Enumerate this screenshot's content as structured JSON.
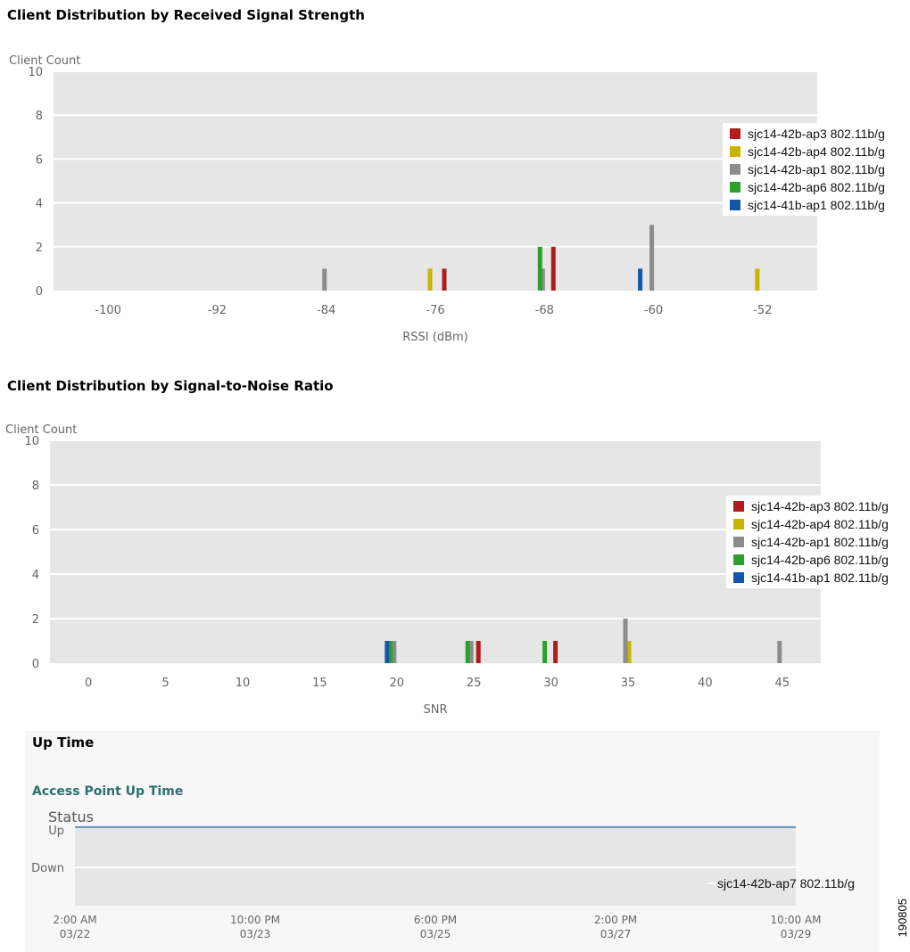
{
  "sections": {
    "rssi_title": "Client Distribution by Received Signal Strength",
    "snr_title": "Client Distribution by Signal-to-Noise Ratio",
    "uptime_title": "Up Time",
    "uptime_subtitle": "Access Point Up Time"
  },
  "figure_id": "190805",
  "colors": {
    "sjc14-42b-ap3": "#b01c1c",
    "sjc14-42b-ap4": "#c8b400",
    "sjc14-42b-ap1": "#8c8c8c",
    "sjc14-42b-ap6": "#2ca02c",
    "sjc14-41b-ap1": "#1457a6",
    "plot_bg": "#e6e6e6",
    "uptime_line": "#6a9ac4"
  },
  "chart_data": [
    {
      "type": "bar",
      "title": "Client Distribution by Received Signal Strength",
      "xlabel": "RSSI (dBm)",
      "ylabel": "Client Count",
      "ylim": [
        0,
        10
      ],
      "yticks": [
        "0",
        "2",
        "4",
        "6",
        "8",
        "10"
      ],
      "categories": [
        "-100",
        "-92",
        "-84",
        "-76",
        "-68",
        "-60",
        "-52"
      ],
      "grid": true,
      "legend_position": "right",
      "series": [
        {
          "name": "sjc14-42b-ap3 802.11b/g",
          "values": [
            0,
            0,
            0,
            1,
            2,
            0,
            0
          ]
        },
        {
          "name": "sjc14-42b-ap4 802.11b/g",
          "values": [
            0,
            0,
            0,
            1,
            0,
            0,
            1
          ]
        },
        {
          "name": "sjc14-42b-ap1 802.11b/g",
          "values": [
            0,
            0,
            1,
            0,
            1,
            3,
            0
          ]
        },
        {
          "name": "sjc14-42b-ap6 802.11b/g",
          "values": [
            0,
            0,
            0,
            0,
            2,
            0,
            0
          ]
        },
        {
          "name": "sjc14-41b-ap1 802.11b/g",
          "values": [
            0,
            0,
            0,
            0,
            0,
            1,
            0
          ]
        }
      ]
    },
    {
      "type": "bar",
      "title": "Client Distribution by Signal-to-Noise Ratio",
      "xlabel": "SNR",
      "ylabel": "Client Count",
      "ylim": [
        0,
        10
      ],
      "yticks": [
        "0",
        "2",
        "4",
        "6",
        "8",
        "10"
      ],
      "categories": [
        "0",
        "5",
        "10",
        "15",
        "20",
        "25",
        "30",
        "35",
        "40",
        "45"
      ],
      "grid": true,
      "legend_position": "right",
      "series": [
        {
          "name": "sjc14-42b-ap3 802.11b/g",
          "values": [
            0,
            0,
            0,
            0,
            0,
            1,
            1,
            0,
            0,
            0
          ]
        },
        {
          "name": "sjc14-42b-ap4 802.11b/g",
          "values": [
            0,
            0,
            0,
            0,
            0,
            0,
            0,
            1,
            0,
            0
          ]
        },
        {
          "name": "sjc14-42b-ap1 802.11b/g",
          "values": [
            0,
            0,
            0,
            0,
            1,
            1,
            0,
            2,
            0,
            1
          ]
        },
        {
          "name": "sjc14-42b-ap6 802.11b/g",
          "values": [
            0,
            0,
            0,
            0,
            1,
            1,
            1,
            0,
            0,
            0
          ]
        },
        {
          "name": "sjc14-41b-ap1 802.11b/g",
          "values": [
            0,
            0,
            0,
            0,
            1,
            0,
            0,
            0,
            0,
            0
          ]
        }
      ]
    },
    {
      "type": "line",
      "title": "Access Point Up Time",
      "ylabel": "Status",
      "yticks": [
        "Down",
        "Up"
      ],
      "x": [
        "2:00 AM 03/22",
        "10:00 PM 03/23",
        "6:00 PM 03/25",
        "2:00 PM 03/27",
        "10:00 AM 03/29"
      ],
      "grid": true,
      "legend_position": "bottom-right",
      "series": [
        {
          "name": "sjc14-42b-ap7 802.11b/g",
          "values": [
            "Up",
            "Up",
            "Up",
            "Up",
            "Up"
          ]
        }
      ]
    }
  ]
}
